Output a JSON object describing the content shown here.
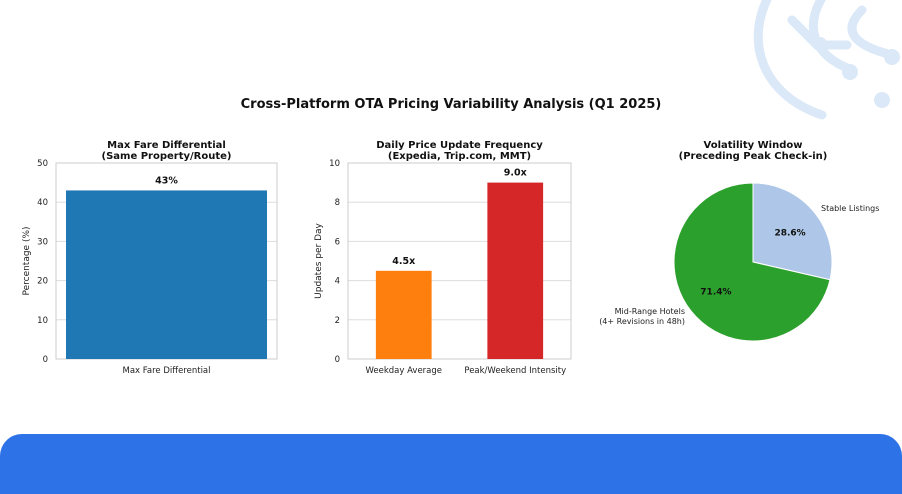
{
  "title": "Cross-Platform OTA Pricing Variability Analysis (Q1 2025)",
  "colors": {
    "footer": "#2e72e8",
    "decoration": "#dbe8f7"
  },
  "chart_data": [
    {
      "type": "bar",
      "title": "Max Fare Differential\n(Same Property/Route)",
      "categories": [
        "Max Fare Differential"
      ],
      "values": [
        43
      ],
      "value_labels": [
        "43%"
      ],
      "colors": [
        "#1f77b4"
      ],
      "ylabel": "Percentage (%)",
      "xlabel": "",
      "ylim": [
        0,
        50
      ],
      "yticks": [
        "0",
        "10",
        "20",
        "30",
        "40",
        "50"
      ],
      "grid": true
    },
    {
      "type": "bar",
      "title": "Daily Price Update Frequency\n(Expedia, Trip.com, MMT)",
      "categories": [
        "Weekday Average",
        "Peak/Weekend Intensity"
      ],
      "values": [
        4.5,
        9.0
      ],
      "value_labels": [
        "4.5x",
        "9.0x"
      ],
      "colors": [
        "#ff7f0e",
        "#d62728"
      ],
      "ylabel": "Updates per Day",
      "xlabel": "",
      "ylim": [
        0,
        10
      ],
      "yticks": [
        "0",
        "2",
        "4",
        "6",
        "8",
        "10"
      ],
      "grid": true
    },
    {
      "type": "pie",
      "title": "Volatility Window\n(Preceding Peak Check-in)",
      "slices": [
        {
          "label": "Stable Listings",
          "value": 28.6,
          "pct_label": "28.6%",
          "color": "#aec7e8"
        },
        {
          "label": "Mid-Range Hotels\n(4+ Revisions in 48h)",
          "value": 71.4,
          "pct_label": "71.4%",
          "color": "#2ca02c"
        }
      ],
      "start_angle_deg": 90,
      "direction": "clockwise"
    }
  ]
}
